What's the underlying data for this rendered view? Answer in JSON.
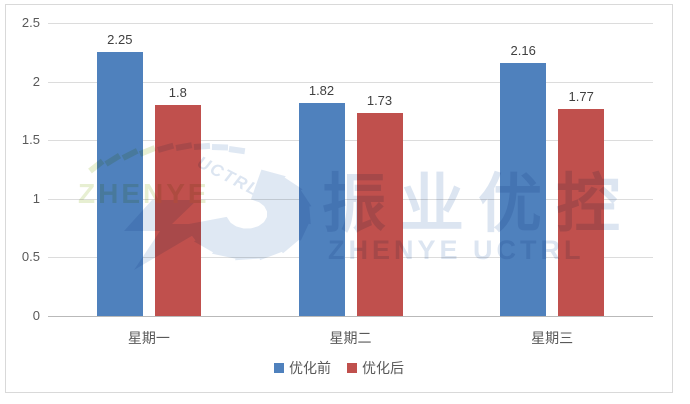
{
  "chart_data": {
    "type": "bar",
    "categories": [
      "星期一",
      "星期二",
      "星期三"
    ],
    "series": [
      {
        "name": "优化前",
        "color": "#4F81BD",
        "values": [
          2.25,
          1.82,
          2.16
        ]
      },
      {
        "name": "优化后",
        "color": "#C0504D",
        "values": [
          1.8,
          1.73,
          1.77
        ]
      }
    ],
    "title": "",
    "xlabel": "",
    "ylabel": "",
    "ylim": [
      0,
      2.5
    ],
    "yticks": [
      "0",
      "0.5",
      "1",
      "1.5",
      "2",
      "2.5"
    ],
    "grid": true,
    "legend_position": "bottom",
    "data_labels": true
  },
  "watermark": {
    "brand_en": "ZHENYE",
    "brand_cn": "振业优控",
    "brand_sub": "ZHENYE UCTRL",
    "logo_text": "UCTRL",
    "colors": {
      "pale_blue": "#dce5f1",
      "pale_green": "#e7efd2"
    }
  }
}
